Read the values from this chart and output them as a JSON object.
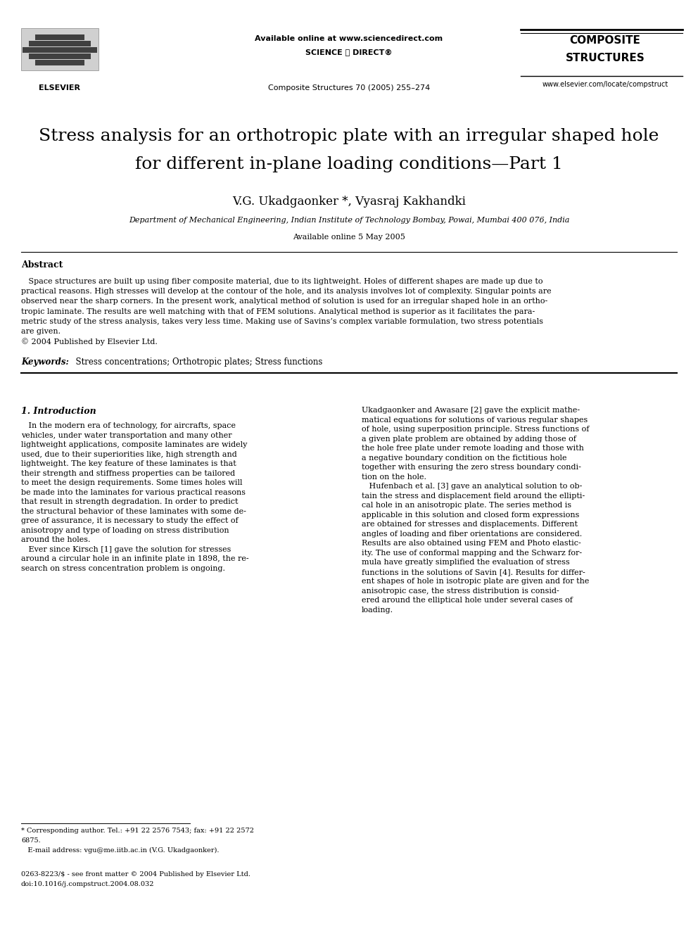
{
  "page_width": 9.92,
  "page_height": 13.23,
  "dpi": 100,
  "background_color": "#ffffff",
  "header": {
    "available_online": "Available online at www.sciencedirect.com",
    "sciencedirect_text": "SCIENCE ⓓ DIRECT®",
    "journal_name": "Composite Structures 70 (2005) 255–274",
    "journal_brand_line1": "COMPOSITE",
    "journal_brand_line2": "STRUCTURES",
    "journal_url": "www.elsevier.com/locate/compstruct",
    "elsevier_text": "ELSEVIER"
  },
  "title_line1": "Stress analysis for an orthotropic plate with an irregular shaped hole",
  "title_line2": "for different in-plane loading conditions—Part 1",
  "authors": "V.G. Ukadgaonker *, Vyasraj Kakhandki",
  "affiliation": "Department of Mechanical Engineering, Indian Institute of Technology Bombay, Powai, Mumbai 400 076, India",
  "available_online_date": "Available online 5 May 2005",
  "abstract_heading": "Abstract",
  "abstract_lines": [
    "   Space structures are built up using fiber composite material, due to its lightweight. Holes of different shapes are made up due to",
    "practical reasons. High stresses will develop at the contour of the hole, and its analysis involves lot of complexity. Singular points are",
    "observed near the sharp corners. In the present work, analytical method of solution is used for an irregular shaped hole in an ortho-",
    "tropic laminate. The results are well matching with that of FEM solutions. Analytical method is superior as it facilitates the para-",
    "metric study of the stress analysis, takes very less time. Making use of Savins’s complex variable formulation, two stress potentials",
    "are given.",
    "© 2004 Published by Elsevier Ltd."
  ],
  "keywords_label": "Keywords:",
  "keywords_text": "  Stress concentrations; Orthotropic plates; Stress functions",
  "section1_heading": "1. Introduction",
  "left_col_lines": [
    "   In the modern era of technology, for aircrafts, space",
    "vehicles, under water transportation and many other",
    "lightweight applications, composite laminates are widely",
    "used, due to their superiorities like, high strength and",
    "lightweight. The key feature of these laminates is that",
    "their strength and stiffness properties can be tailored",
    "to meet the design requirements. Some times holes will",
    "be made into the laminates for various practical reasons",
    "that result in strength degradation. In order to predict",
    "the structural behavior of these laminates with some de-",
    "gree of assurance, it is necessary to study the effect of",
    "anisotropy and type of loading on stress distribution",
    "around the holes.",
    "   Ever since Kirsch [1] gave the solution for stresses",
    "around a circular hole in an infinite plate in 1898, the re-",
    "search on stress concentration problem is ongoing."
  ],
  "right_col_lines": [
    "Ukadgaonker and Awasare [2] gave the explicit mathe-",
    "matical equations for solutions of various regular shapes",
    "of hole, using superposition principle. Stress functions of",
    "a given plate problem are obtained by adding those of",
    "the hole free plate under remote loading and those with",
    "a negative boundary condition on the fictitious hole",
    "together with ensuring the zero stress boundary condi-",
    "tion on the hole.",
    "   Hufenbach et al. [3] gave an analytical solution to ob-",
    "tain the stress and displacement field around the ellipti-",
    "cal hole in an anisotropic plate. The series method is",
    "applicable in this solution and closed form expressions",
    "are obtained for stresses and displacements. Different",
    "angles of loading and fiber orientations are considered.",
    "Results are also obtained using FEM and Photo elastic-",
    "ity. The use of conformal mapping and the Schwarz for-",
    "mula have greatly simplified the evaluation of stress",
    "functions in the solutions of Savin [4]. Results for differ-",
    "ent shapes of hole in isotropic plate are given and for the",
    "anisotropic case, the stress distribution is consid-",
    "ered around the elliptical hole under several cases of",
    "loading."
  ],
  "footnote_star": "* Corresponding author. Tel.: +91 22 2576 7543; fax: +91 22 2572",
  "footnote_star2": "6875.",
  "footnote_email": "   E-mail address: vgu@me.iitb.ac.in (V.G. Ukadgaonker).",
  "footnote_issn": "0263-8223/$ - see front matter © 2004 Published by Elsevier Ltd.",
  "footnote_doi": "doi:10.1016/j.compstruct.2004.08.032"
}
